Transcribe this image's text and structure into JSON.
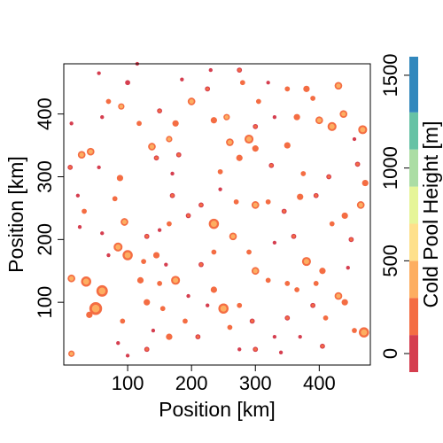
{
  "chart_data": {
    "type": "heatmap",
    "xlabel": "Position [km]",
    "ylabel": "Position [km]",
    "xlim": [
      0,
      480
    ],
    "ylim": [
      0,
      480
    ],
    "x_ticks": [
      100,
      200,
      300,
      400
    ],
    "y_ticks": [
      100,
      200,
      300,
      400
    ],
    "colorbar": {
      "label": "Cold Pool Height [m]",
      "range": [
        -100,
        1600
      ],
      "ticks": [
        0,
        500,
        1000,
        1500
      ],
      "bins": [
        {
          "from": -100,
          "to": 100,
          "color": "#d53e4f"
        },
        {
          "from": 100,
          "to": 300,
          "color": "#f46d43"
        },
        {
          "from": 300,
          "to": 500,
          "color": "#fdae61"
        },
        {
          "from": 500,
          "to": 700,
          "color": "#fee08b"
        },
        {
          "from": 700,
          "to": 900,
          "color": "#e6f598"
        },
        {
          "from": 900,
          "to": 1100,
          "color": "#abdda4"
        },
        {
          "from": 1100,
          "to": 1300,
          "color": "#66c2a5"
        },
        {
          "from": 1300,
          "to": 1600,
          "color": "#3288bd"
        }
      ]
    },
    "cold_pools": [
      [
        12,
        385,
        3,
        120
      ],
      [
        10,
        315,
        4,
        180
      ],
      [
        28,
        335,
        6,
        350
      ],
      [
        42,
        340,
        6,
        350
      ],
      [
        22,
        270,
        3,
        150
      ],
      [
        32,
        245,
        4,
        200
      ],
      [
        12,
        138,
        6,
        350
      ],
      [
        35,
        133,
        8,
        380
      ],
      [
        60,
        118,
        9,
        400
      ],
      [
        50,
        90,
        10,
        450
      ],
      [
        40,
        80,
        5,
        250
      ],
      [
        12,
        18,
        5,
        300
      ],
      [
        55,
        465,
        3,
        120
      ],
      [
        70,
        420,
        4,
        200
      ],
      [
        90,
        412,
        5,
        300
      ],
      [
        100,
        450,
        4,
        150
      ],
      [
        88,
        298,
        5,
        250
      ],
      [
        80,
        265,
        4,
        200
      ],
      [
        95,
        228,
        6,
        300
      ],
      [
        85,
        188,
        7,
        350
      ],
      [
        100,
        175,
        8,
        450
      ],
      [
        125,
        165,
        4,
        200
      ],
      [
        120,
        135,
        5,
        250
      ],
      [
        92,
        70,
        4,
        200
      ],
      [
        85,
        35,
        3,
        120
      ],
      [
        100,
        15,
        3,
        150
      ],
      [
        130,
        25,
        4,
        180
      ],
      [
        118,
        385,
        4,
        200
      ],
      [
        150,
        405,
        4,
        180
      ],
      [
        138,
        348,
        6,
        350
      ],
      [
        145,
        330,
        4,
        180
      ],
      [
        165,
        360,
        5,
        300
      ],
      [
        175,
        385,
        5,
        250
      ],
      [
        180,
        335,
        4,
        180
      ],
      [
        200,
        420,
        6,
        350
      ],
      [
        225,
        440,
        4,
        180
      ],
      [
        235,
        390,
        5,
        250
      ],
      [
        255,
        395,
        5,
        300
      ],
      [
        260,
        355,
        6,
        320
      ],
      [
        245,
        308,
        4,
        200
      ],
      [
        275,
        330,
        5,
        250
      ],
      [
        290,
        360,
        7,
        400
      ],
      [
        300,
        345,
        5,
        250
      ],
      [
        280,
        450,
        4,
        200
      ],
      [
        305,
        420,
        4,
        200
      ],
      [
        300,
        380,
        4,
        180
      ],
      [
        325,
        318,
        4,
        180
      ],
      [
        350,
        350,
        5,
        250
      ],
      [
        365,
        395,
        5,
        280
      ],
      [
        380,
        440,
        5,
        250
      ],
      [
        390,
        425,
        4,
        200
      ],
      [
        400,
        390,
        6,
        350
      ],
      [
        420,
        380,
        7,
        350
      ],
      [
        430,
        445,
        6,
        350
      ],
      [
        438,
        400,
        6,
        350
      ],
      [
        468,
        375,
        7,
        380
      ],
      [
        460,
        320,
        4,
        180
      ],
      [
        455,
        360,
        3,
        120
      ],
      [
        472,
        290,
        5,
        280
      ],
      [
        465,
        255,
        6,
        320
      ],
      [
        440,
        238,
        5,
        250
      ],
      [
        420,
        225,
        4,
        200
      ],
      [
        395,
        270,
        4,
        180
      ],
      [
        370,
        268,
        5,
        250
      ],
      [
        345,
        245,
        4,
        180
      ],
      [
        320,
        260,
        4,
        200
      ],
      [
        300,
        255,
        6,
        350
      ],
      [
        270,
        260,
        4,
        200
      ],
      [
        235,
        225,
        8,
        380
      ],
      [
        215,
        255,
        4,
        180
      ],
      [
        195,
        238,
        4,
        180
      ],
      [
        170,
        270,
        4,
        180
      ],
      [
        165,
        225,
        4,
        200
      ],
      [
        150,
        215,
        3,
        120
      ],
      [
        130,
        205,
        4,
        180
      ],
      [
        145,
        175,
        5,
        250
      ],
      [
        160,
        160,
        3,
        150
      ],
      [
        175,
        135,
        7,
        350
      ],
      [
        150,
        130,
        4,
        200
      ],
      [
        130,
        100,
        5,
        250
      ],
      [
        155,
        90,
        4,
        200
      ],
      [
        165,
        45,
        5,
        250
      ],
      [
        190,
        70,
        4,
        200
      ],
      [
        210,
        45,
        4,
        180
      ],
      [
        235,
        120,
        5,
        250
      ],
      [
        250,
        90,
        8,
        380
      ],
      [
        275,
        95,
        4,
        200
      ],
      [
        260,
        60,
        4,
        200
      ],
      [
        295,
        70,
        4,
        180
      ],
      [
        300,
        150,
        6,
        320
      ],
      [
        320,
        135,
        4,
        200
      ],
      [
        290,
        180,
        4,
        200
      ],
      [
        265,
        205,
        6,
        320
      ],
      [
        235,
        180,
        4,
        200
      ],
      [
        215,
        160,
        4,
        180
      ],
      [
        350,
        130,
        4,
        200
      ],
      [
        380,
        165,
        7,
        350
      ],
      [
        395,
        130,
        4,
        200
      ],
      [
        405,
        150,
        5,
        250
      ],
      [
        430,
        110,
        6,
        330
      ],
      [
        440,
        100,
        5,
        250
      ],
      [
        410,
        75,
        4,
        200
      ],
      [
        390,
        95,
        4,
        180
      ],
      [
        365,
        120,
        4,
        200
      ],
      [
        350,
        75,
        4,
        180
      ],
      [
        330,
        45,
        3,
        150
      ],
      [
        300,
        25,
        4,
        180
      ],
      [
        340,
        20,
        3,
        150
      ],
      [
        470,
        52,
        8,
        400
      ],
      [
        455,
        55,
        4,
        200
      ],
      [
        450,
        200,
        4,
        180
      ],
      [
        445,
        155,
        3,
        150
      ],
      [
        415,
        300,
        4,
        180
      ],
      [
        375,
        305,
        4,
        200
      ],
      [
        360,
        205,
        4,
        180
      ],
      [
        330,
        195,
        3,
        150
      ],
      [
        275,
        470,
        4,
        180
      ],
      [
        230,
        470,
        3,
        150
      ],
      [
        185,
        455,
        3,
        150
      ],
      [
        115,
        480,
        3,
        120
      ],
      [
        70,
        175,
        3,
        150
      ],
      [
        60,
        210,
        3,
        150
      ],
      [
        170,
        305,
        3,
        150
      ],
      [
        245,
        280,
        3,
        150
      ],
      [
        60,
        395,
        3,
        150
      ],
      [
        195,
        110,
        3,
        150
      ],
      [
        225,
        95,
        3,
        150
      ],
      [
        405,
        30,
        4,
        180
      ],
      [
        370,
        45,
        3,
        150
      ],
      [
        275,
        25,
        3,
        150
      ],
      [
        140,
        55,
        3,
        150
      ],
      [
        320,
        450,
        3,
        150
      ],
      [
        350,
        440,
        4,
        200
      ],
      [
        330,
        395,
        3,
        150
      ],
      [
        55,
        315,
        3,
        150
      ],
      [
        25,
        220,
        3,
        150
      ]
    ]
  }
}
